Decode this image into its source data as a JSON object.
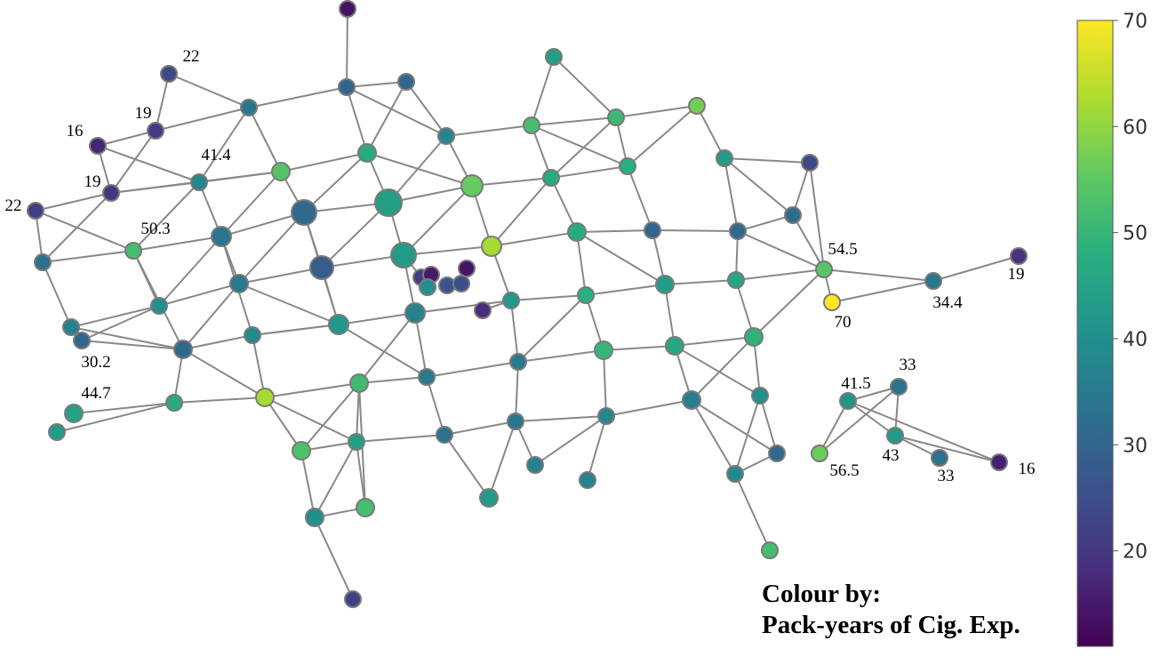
{
  "colorbar": {
    "min": 11,
    "max": 70,
    "ticks": [
      "20",
      "30",
      "40",
      "50",
      "60",
      "70"
    ],
    "colormap": "viridis",
    "colors": [
      "#440154",
      "#472f7d",
      "#3b528b",
      "#2c728e",
      "#21918c",
      "#28ae80",
      "#5ec962",
      "#addc30",
      "#fde725"
    ]
  },
  "caption": {
    "line1": "Colour by:",
    "line2": "Pack-years of Cig. Exp."
  },
  "node_labels": [
    "22",
    "19",
    "16",
    "41.4",
    "19",
    "22",
    "50.3",
    "30.2",
    "44.7",
    "54.5",
    "70",
    "34.4",
    "19",
    "33",
    "41.5",
    "43",
    "56.5",
    "33",
    "16"
  ],
  "edge_color": "#888888",
  "node_stroke": "#7a7a7a"
}
